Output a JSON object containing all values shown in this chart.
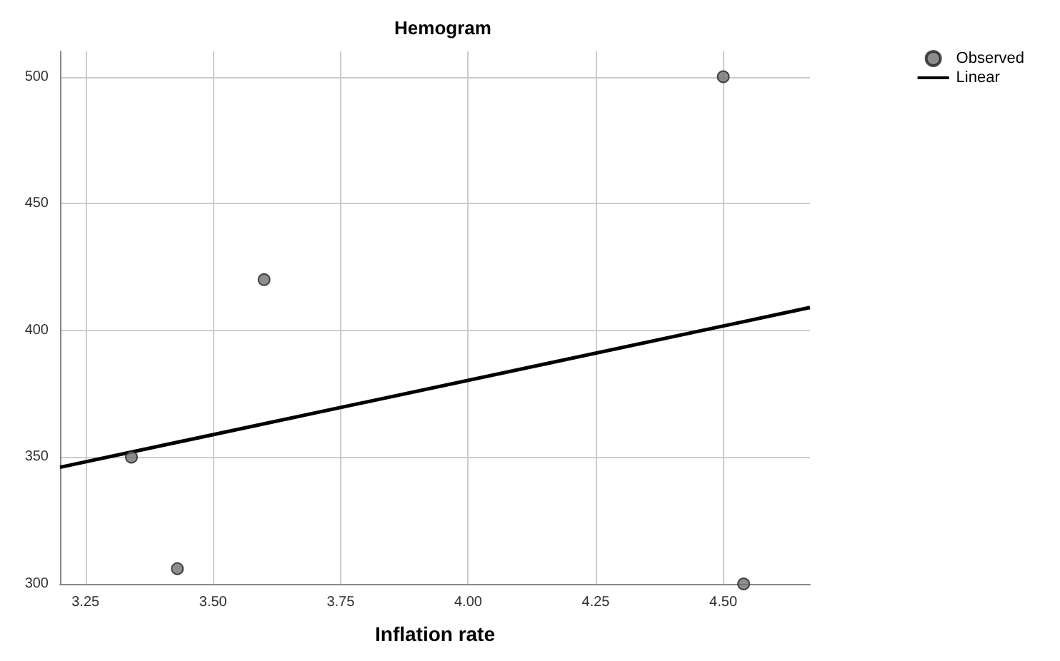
{
  "chart_data": {
    "type": "scatter",
    "title": "Hemogram",
    "xlabel": "Inflation rate",
    "series": [
      {
        "name": "Observed",
        "marker": "circle",
        "color": "#707070",
        "x": [
          3.34,
          3.43,
          3.6,
          4.5,
          4.54
        ],
        "values": [
          350,
          306,
          420,
          500,
          300
        ]
      },
      {
        "name": "Linear",
        "type": "line",
        "marker": "none",
        "color": "#000000",
        "x": [
          3.2,
          4.67
        ],
        "values": [
          346,
          409
        ]
      }
    ],
    "xlim": [
      3.2,
      4.67
    ],
    "xticks": [
      {
        "value": 3.25,
        "label": "3.25"
      },
      {
        "value": 3.5,
        "label": "3.50"
      },
      {
        "value": 3.75,
        "label": "3.75"
      },
      {
        "value": 4,
        "label": "4.00"
      },
      {
        "value": 4.25,
        "label": "4.25"
      },
      {
        "value": 4.5,
        "label": "4.50"
      }
    ],
    "ylim": [
      300,
      510
    ],
    "yticks": [
      300,
      350,
      400,
      450,
      500
    ],
    "grid": true,
    "legend": "top right",
    "line_style": "solid"
  }
}
